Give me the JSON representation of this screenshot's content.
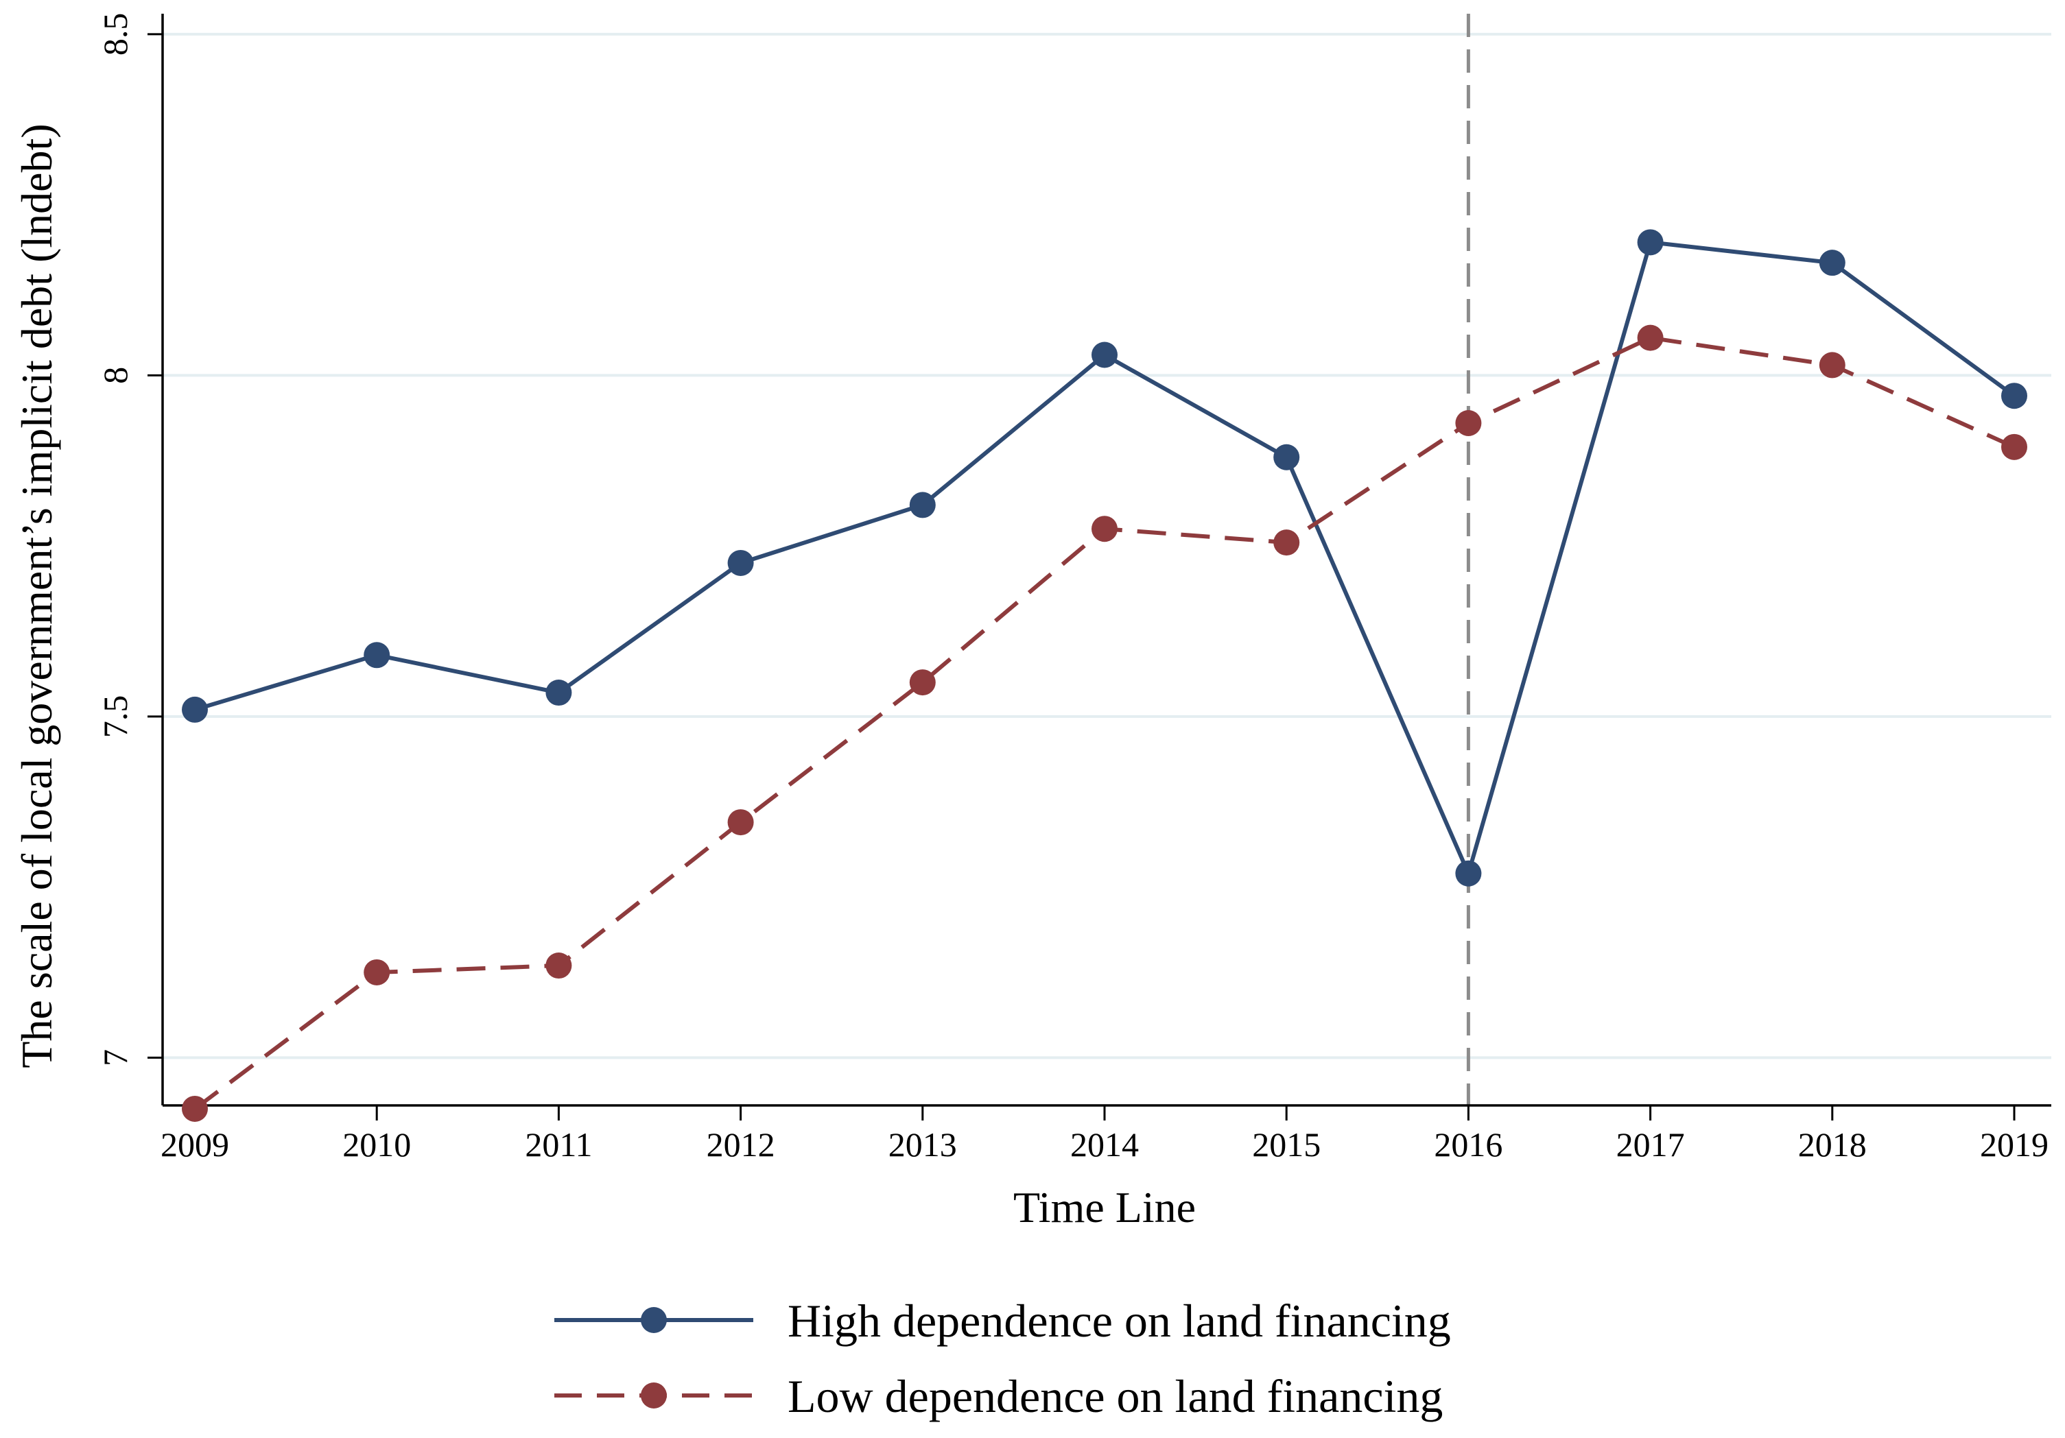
{
  "chart_data": {
    "type": "line",
    "title": "",
    "xlabel": "Time Line",
    "ylabel": "The scale of local government’s implicit debt (lndebt)",
    "x": [
      2009,
      2010,
      2011,
      2012,
      2013,
      2014,
      2015,
      2016,
      2017,
      2018,
      2019
    ],
    "x_tick_labels": [
      "2009",
      "2010",
      "2011",
      "2012",
      "2013",
      "2014",
      "2015",
      "2016",
      "2017",
      "2018",
      "2019"
    ],
    "xlim": [
      2009,
      2019
    ],
    "ylim": [
      6.93,
      8.53
    ],
    "y_ticks": [
      7,
      7.5,
      8,
      8.5
    ],
    "y_tick_labels": [
      "7",
      "7.5",
      "8",
      "8.5"
    ],
    "grid": true,
    "reference_line": {
      "x": 2016,
      "style": "dashed",
      "color": "#8c8c8c"
    },
    "legend_position": "bottom",
    "series": [
      {
        "name": "High dependence on land financing",
        "color": "#2f4b73",
        "line_style": "solid",
        "values": [
          7.51,
          7.59,
          7.535,
          7.725,
          7.81,
          8.03,
          7.88,
          7.27,
          8.195,
          8.165,
          7.97
        ]
      },
      {
        "name": "Low dependence on land financing",
        "color": "#8e3b3d",
        "line_style": "dashed",
        "values": [
          6.925,
          7.125,
          7.135,
          7.345,
          7.55,
          7.775,
          7.755,
          7.93,
          8.055,
          8.015,
          7.895
        ]
      }
    ]
  }
}
